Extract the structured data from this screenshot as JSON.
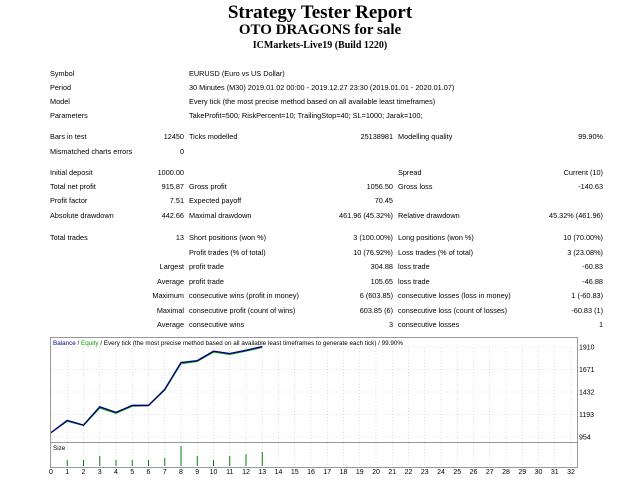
{
  "header": {
    "title": "Strategy Tester Report",
    "subtitle": "OTO DRAGONS for sale",
    "server": "ICMarkets-Live19 (Build 1220)"
  },
  "info": {
    "symbol_label": "Symbol",
    "symbol_value": "EURUSD (Euro vs US Dollar)",
    "period_label": "Period",
    "period_value": "30 Minutes (M30) 2019.01.02 00:00 - 2019.12.27 23:30 (2019.01.01 - 2020.01.07)",
    "model_label": "Model",
    "model_value": "Every tick (the most precise method based on all available least timeframes)",
    "parameters_label": "Parameters",
    "parameters_value": "TakeProfit=500; RiskPercent=10; TrailingStop=40; SL=1000; Jarak=100;"
  },
  "stats": {
    "bars_label": "Bars in test",
    "bars_value": "12450",
    "ticks_label": "Ticks modelled",
    "ticks_value": "25138981",
    "quality_label": "Modelling quality",
    "quality_value": "99.90%",
    "mismatched_label": "Mismatched charts errors",
    "mismatched_value": "0",
    "initial_label": "Initial deposit",
    "initial_value": "1000.00",
    "spread_label": "Spread",
    "spread_value": "Current (10)",
    "netprofit_label": "Total net profit",
    "netprofit_value": "915.87",
    "grossprofit_label": "Gross profit",
    "grossprofit_value": "1056.50",
    "grossloss_label": "Gross loss",
    "grossloss_value": "-140.63",
    "pf_label": "Profit factor",
    "pf_value": "7.51",
    "payoff_label": "Expected payoff",
    "payoff_value": "70.45",
    "absdd_label": "Absolute drawdown",
    "absdd_value": "442.66",
    "maxdd_label": "Maximal drawdown",
    "maxdd_value": "461.96 (45.32%)",
    "reldd_label": "Relative drawdown",
    "reldd_value": "45.32% (461.96)",
    "trades_label": "Total trades",
    "trades_value": "13",
    "short_label": "Short positions (won %)",
    "short_value": "3 (100.00%)",
    "long_label": "Long positions (won %)",
    "long_value": "10 (70.00%)",
    "pt_label": "Profit trades (% of total)",
    "pt_value": "10 (76.92%)",
    "lt_label": "Loss trades (% of total)",
    "lt_value": "3 (23.08%)",
    "largest_label": "Largest",
    "largest_pt_label": "profit trade",
    "largest_pt_value": "304.88",
    "largest_lt_label": "loss trade",
    "largest_lt_value": "-60.83",
    "average_label": "Average",
    "average_pt_label": "profit trade",
    "average_pt_value": "105.65",
    "average_lt_label": "loss trade",
    "average_lt_value": "-46.88",
    "maximum_label": "Maximum",
    "max_cw_label": "consecutive wins (profit in money)",
    "max_cw_value": "6 (603.85)",
    "max_cl_label": "consecutive losses (loss in money)",
    "max_cl_value": "1 (-60.83)",
    "maximal_label": "Maximal",
    "mxl_cp_label": "consecutive profit (count of wins)",
    "mxl_cp_value": "603.85 (6)",
    "mxl_cl_label": "consecutive loss (count of losses)",
    "mxl_cl_value": "-60.83 (1)",
    "avg2_label": "Average",
    "avg_cw_label": "consecutive wins",
    "avg_cw_value": "3",
    "avg_cl_label": "consecutive losses",
    "avg_cl_value": "1"
  },
  "chart_legend": {
    "balance": "Balance",
    "sep1": " / ",
    "equity": "Equity",
    "rest": " / Every tick (the most precise method based on all available least timeframes to generate each tick) / 99.90%"
  },
  "size_label": "Size",
  "colors": {
    "balance": "#00007f",
    "equity": "#00a000",
    "size": "#008000"
  },
  "chart_data": {
    "type": "line",
    "ylim": [
      954,
      2000
    ],
    "yticks": [
      1910,
      1671,
      1432,
      1193,
      954
    ],
    "xticks": [
      0,
      1,
      2,
      3,
      4,
      5,
      6,
      7,
      8,
      9,
      10,
      11,
      12,
      13,
      14,
      15,
      16,
      17,
      18,
      19,
      20,
      21,
      22,
      23,
      24,
      25,
      26,
      27,
      28,
      29,
      30,
      31,
      32
    ],
    "xlim": [
      0,
      32
    ],
    "series": [
      {
        "name": "Balance",
        "x": [
          0,
          1,
          2,
          3,
          4,
          5,
          6,
          7,
          8,
          9,
          10,
          11,
          12,
          13
        ],
        "values": [
          1000,
          1130,
          1080,
          1275,
          1215,
          1290,
          1290,
          1460,
          1745,
          1765,
          1865,
          1840,
          1875,
          1915
        ]
      },
      {
        "name": "Equity",
        "x": [
          0,
          1,
          2,
          3,
          4,
          5,
          6,
          7,
          8,
          9,
          10,
          11,
          12,
          13
        ],
        "values": [
          1000,
          1120,
          1075,
          1260,
          1205,
          1280,
          1285,
          1450,
          1730,
          1755,
          1855,
          1830,
          1865,
          1905
        ]
      }
    ],
    "size": {
      "x": [
        1,
        2,
        3,
        4,
        5,
        6,
        7,
        8,
        9,
        10,
        11,
        12,
        13
      ],
      "values": [
        0.3,
        0.3,
        0.5,
        0.3,
        0.3,
        0.3,
        0.4,
        1.0,
        0.5,
        0.3,
        0.5,
        0.6,
        0.7
      ]
    }
  }
}
